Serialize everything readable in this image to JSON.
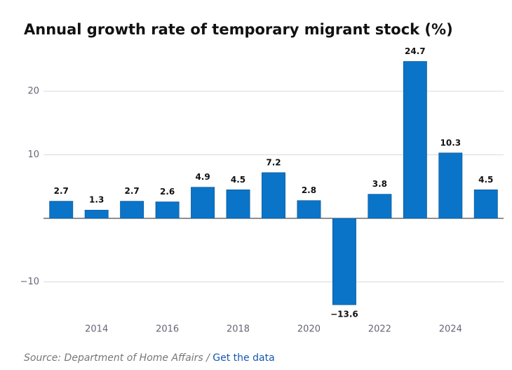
{
  "chart_data": {
    "type": "bar",
    "title": "Annual growth rate of temporary migrant stock (%)",
    "categories": [
      null,
      "2014",
      null,
      "2016",
      null,
      "2018",
      null,
      "2020",
      null,
      "2022",
      null,
      "2024",
      null
    ],
    "values": [
      2.7,
      1.3,
      2.7,
      2.6,
      4.9,
      4.5,
      7.2,
      2.8,
      -13.6,
      3.8,
      24.7,
      10.3,
      4.5
    ],
    "value_labels": [
      "2.7",
      "1.3",
      "2.7",
      "2.6",
      "4.9",
      "4.5",
      "7.2",
      "2.8",
      "−13.6",
      "3.8",
      "24.7",
      "10.3",
      "4.5"
    ],
    "color": "#0a74c8",
    "ylim": [
      -16,
      26
    ],
    "yticks": [
      {
        "value": -10,
        "label": "−10"
      },
      10,
      20
    ],
    "grid": true
  },
  "footer": {
    "source": "Source: Department of Home Affairs / ",
    "link": "Get the data"
  }
}
